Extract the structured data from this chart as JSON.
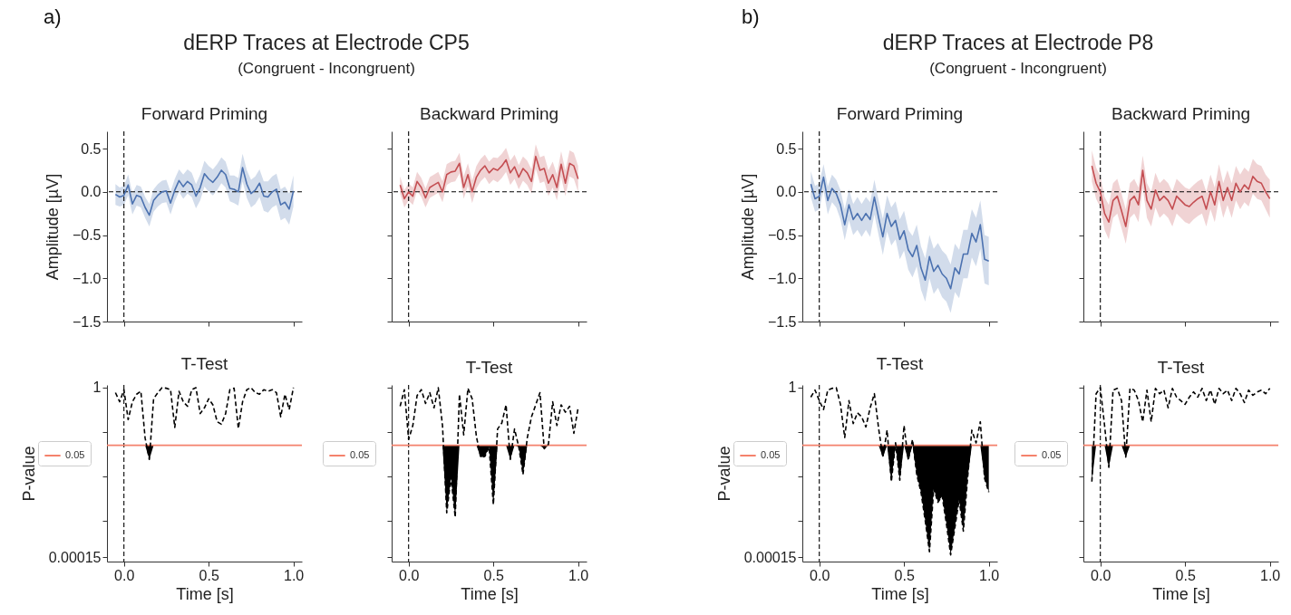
{
  "chart_data": [
    {
      "type": "line",
      "title": "Forward Priming",
      "ylabel": "Amplitude [µV]",
      "annotations": [
        "a)",
        "dERP Traces at Electrode CP5",
        "(Congruent - Incongruent)"
      ],
      "tick_labels": "y",
      "xlim": [
        -0.1,
        1.05
      ],
      "xticks": [
        {
          "value": 0,
          "label": null
        },
        {
          "value": 0.5,
          "label": null
        },
        {
          "value": 1,
          "label": null
        }
      ],
      "ylim": [
        -1.5,
        0.7
      ],
      "yticks": [
        {
          "value": -1.5,
          "label": "−1.5"
        },
        {
          "value": -1,
          "label": "−1.0"
        },
        {
          "value": -0.5,
          "label": "−0.5"
        },
        {
          "value": 0,
          "label": "0.0"
        },
        {
          "value": 0.5,
          "label": "0.5"
        }
      ],
      "grid": false,
      "ref_lines": [
        {
          "axis": "x",
          "value": 0,
          "color": "#000000",
          "line_style": "dashed"
        },
        {
          "axis": "y",
          "value": 0,
          "color": "#000000",
          "line_style": "dashed"
        }
      ],
      "x": [
        -0.05,
        -0.025,
        0,
        0.025,
        0.05,
        0.075,
        0.1,
        0.125,
        0.15,
        0.175,
        0.2,
        0.225,
        0.25,
        0.275,
        0.3,
        0.325,
        0.35,
        0.375,
        0.4,
        0.425,
        0.45,
        0.475,
        0.5,
        0.525,
        0.55,
        0.575,
        0.6,
        0.625,
        0.65,
        0.675,
        0.7,
        0.725,
        0.75,
        0.775,
        0.8,
        0.825,
        0.85,
        0.875,
        0.9,
        0.925,
        0.95,
        0.975,
        1.0
      ],
      "series": [
        {
          "color": "#4c72b0",
          "values": [
            -0.03,
            -0.06,
            -0.04,
            0.08,
            -0.14,
            -0.04,
            -0.06,
            -0.18,
            -0.27,
            -0.1,
            -0.04,
            0.0,
            0.01,
            -0.13,
            0.02,
            0.13,
            0.06,
            0.12,
            0.08,
            -0.05,
            0.05,
            0.21,
            0.15,
            0.11,
            0.17,
            0.25,
            0.2,
            0.04,
            0.03,
            0.0,
            0.28,
            0.09,
            -0.02,
            0.02,
            0.1,
            -0.05,
            -0.06,
            0.0,
            0.03,
            -0.15,
            -0.12,
            -0.2,
            0.01
          ],
          "lower": [
            -0.15,
            -0.17,
            -0.15,
            -0.04,
            -0.26,
            -0.16,
            -0.18,
            -0.3,
            -0.4,
            -0.23,
            -0.17,
            -0.13,
            -0.12,
            -0.26,
            -0.11,
            0.0,
            -0.08,
            -0.02,
            -0.06,
            -0.19,
            -0.1,
            0.06,
            0.0,
            -0.04,
            0.02,
            0.1,
            0.05,
            -0.11,
            -0.13,
            -0.16,
            0.12,
            -0.07,
            -0.18,
            -0.14,
            -0.06,
            -0.22,
            -0.24,
            -0.18,
            -0.15,
            -0.33,
            -0.3,
            -0.38,
            -0.17
          ],
          "upper": [
            0.09,
            0.05,
            0.07,
            0.2,
            -0.02,
            0.08,
            0.06,
            -0.06,
            -0.14,
            0.03,
            0.09,
            0.13,
            0.14,
            0.0,
            0.15,
            0.26,
            0.2,
            0.26,
            0.22,
            0.09,
            0.2,
            0.36,
            0.3,
            0.26,
            0.32,
            0.4,
            0.35,
            0.19,
            0.19,
            0.16,
            0.44,
            0.25,
            0.14,
            0.18,
            0.26,
            0.12,
            0.12,
            0.18,
            0.21,
            0.03,
            0.06,
            -0.02,
            0.19
          ]
        }
      ]
    },
    {
      "type": "line",
      "title": "Backward Priming",
      "tick_labels": false,
      "xlim": [
        -0.1,
        1.05
      ],
      "xticks": [
        {
          "value": 0,
          "label": null
        },
        {
          "value": 0.5,
          "label": null
        },
        {
          "value": 1,
          "label": null
        }
      ],
      "ylim": [
        -1.5,
        0.7
      ],
      "yticks": [
        {
          "value": -1.5,
          "label": null
        },
        {
          "value": -1,
          "label": null
        },
        {
          "value": -0.5,
          "label": null
        },
        {
          "value": 0,
          "label": null
        },
        {
          "value": 0.5,
          "label": null
        }
      ],
      "grid": false,
      "ref_lines": [
        {
          "axis": "x",
          "value": 0,
          "color": "#000000",
          "line_style": "dashed"
        },
        {
          "axis": "y",
          "value": 0,
          "color": "#000000",
          "line_style": "dashed"
        }
      ],
      "x": [
        -0.05,
        -0.025,
        0,
        0.025,
        0.05,
        0.075,
        0.1,
        0.125,
        0.15,
        0.175,
        0.2,
        0.225,
        0.25,
        0.275,
        0.3,
        0.325,
        0.35,
        0.375,
        0.4,
        0.425,
        0.45,
        0.475,
        0.5,
        0.525,
        0.55,
        0.575,
        0.6,
        0.625,
        0.65,
        0.675,
        0.7,
        0.725,
        0.75,
        0.775,
        0.8,
        0.825,
        0.85,
        0.875,
        0.9,
        0.925,
        0.95,
        0.975,
        1.0
      ],
      "series": [
        {
          "color": "#c44e52",
          "values": [
            0.08,
            -0.08,
            0.0,
            -0.05,
            0.12,
            0.05,
            -0.07,
            0.05,
            0.08,
            0.11,
            0.0,
            0.2,
            0.23,
            0.24,
            0.33,
            0.05,
            0.2,
            0.0,
            0.17,
            0.25,
            0.3,
            0.22,
            0.27,
            0.25,
            0.3,
            0.37,
            0.22,
            0.29,
            0.17,
            0.27,
            0.22,
            0.12,
            0.41,
            0.25,
            0.27,
            0.1,
            0.2,
            0.05,
            0.32,
            0.1,
            0.33,
            0.3,
            0.15
          ],
          "lower": [
            -0.02,
            -0.18,
            -0.1,
            -0.15,
            0.01,
            -0.06,
            -0.18,
            -0.07,
            -0.04,
            -0.01,
            -0.12,
            0.08,
            0.11,
            0.12,
            0.21,
            -0.08,
            0.07,
            -0.13,
            0.04,
            0.12,
            0.17,
            0.09,
            0.14,
            0.11,
            0.16,
            0.23,
            0.08,
            0.15,
            0.03,
            0.13,
            0.08,
            -0.02,
            0.27,
            0.1,
            0.12,
            -0.05,
            0.05,
            -0.1,
            0.17,
            -0.05,
            0.18,
            0.15,
            0.0
          ],
          "upper": [
            0.18,
            0.02,
            0.1,
            0.05,
            0.23,
            0.16,
            0.04,
            0.17,
            0.2,
            0.23,
            0.12,
            0.32,
            0.35,
            0.36,
            0.45,
            0.18,
            0.33,
            0.13,
            0.3,
            0.38,
            0.43,
            0.35,
            0.4,
            0.39,
            0.44,
            0.51,
            0.36,
            0.43,
            0.31,
            0.41,
            0.36,
            0.26,
            0.55,
            0.4,
            0.42,
            0.25,
            0.35,
            0.2,
            0.47,
            0.25,
            0.48,
            0.45,
            0.3
          ]
        }
      ]
    },
    {
      "type": "line",
      "title": "T-Test",
      "xlabel": "Time [s]",
      "ylabel": "P-value",
      "log": "y",
      "legend": "left",
      "marker": "none",
      "xlim": [
        -0.1,
        1.05
      ],
      "xticks": [
        {
          "value": 0,
          "label": "0.0"
        },
        {
          "value": 0.5,
          "label": "0.5"
        },
        {
          "value": 1,
          "label": "1.0"
        }
      ],
      "ylim": [
        0.00012,
        1.15
      ],
      "yticks": [
        {
          "value": 0.00015,
          "label": "0.00015"
        },
        {
          "value": 0.001,
          "label": null
        },
        {
          "value": 0.01,
          "label": null
        },
        {
          "value": 0.1,
          "label": null
        },
        {
          "value": 1,
          "label": "1"
        }
      ],
      "grid": false,
      "ref_lines": [
        {
          "axis": "x",
          "value": 0,
          "color": "#000000",
          "line_style": "dashed"
        },
        {
          "axis": "y",
          "value": 0.05,
          "label": "0.05",
          "color": "#f4826c",
          "line_style": "solid"
        }
      ],
      "x": [
        -0.05,
        -0.025,
        0,
        0.025,
        0.05,
        0.075,
        0.1,
        0.125,
        0.15,
        0.175,
        0.2,
        0.225,
        0.25,
        0.275,
        0.3,
        0.325,
        0.35,
        0.375,
        0.4,
        0.425,
        0.45,
        0.475,
        0.5,
        0.525,
        0.55,
        0.575,
        0.6,
        0.625,
        0.65,
        0.675,
        0.7,
        0.725,
        0.75,
        0.775,
        0.8,
        0.825,
        0.85,
        0.875,
        0.9,
        0.925,
        0.95,
        0.975,
        1.0
      ],
      "series": [
        {
          "color": "#000000",
          "line_style": "dashed",
          "lower": [
            0.05,
            0.05,
            0.05,
            0.05,
            0.05,
            0.05,
            0.05,
            0.05,
            0.024,
            0.05,
            0.05,
            0.05,
            0.05,
            0.05,
            0.05,
            0.05,
            0.05,
            0.05,
            0.05,
            0.05,
            0.05,
            0.05,
            0.05,
            0.05,
            0.05,
            0.05,
            0.05,
            0.05,
            0.05,
            0.05,
            0.05,
            0.05,
            0.05,
            0.05,
            0.05,
            0.05,
            0.05,
            0.05,
            0.05,
            0.05,
            0.05,
            0.05,
            0.05
          ],
          "upper": [
            0.05,
            0.05,
            0.05,
            0.05,
            0.05,
            0.05,
            0.05,
            0.05,
            0.05,
            0.05,
            0.05,
            0.05,
            0.05,
            0.05,
            0.05,
            0.05,
            0.05,
            0.05,
            0.05,
            0.05,
            0.05,
            0.05,
            0.05,
            0.05,
            0.05,
            0.05,
            0.05,
            0.05,
            0.05,
            0.05,
            0.05,
            0.05,
            0.05,
            0.05,
            0.05,
            0.05,
            0.05,
            0.05,
            0.05,
            0.05,
            0.05,
            0.05,
            0.05
          ],
          "values": [
            0.77,
            0.48,
            0.9,
            0.19,
            0.48,
            0.71,
            0.83,
            0.073,
            0.024,
            0.56,
            0.77,
            1.0,
            0.97,
            0.9,
            0.127,
            0.83,
            0.48,
            0.38,
            0.9,
            1.0,
            0.26,
            0.35,
            0.56,
            0.41,
            0.17,
            0.15,
            0.26,
            0.9,
            0.97,
            0.12,
            0.48,
            0.9,
            1.0,
            0.77,
            0.71,
            0.9,
            0.83,
            0.9,
            0.77,
            0.22,
            0.71,
            0.32,
            1.0
          ]
        }
      ]
    },
    {
      "type": "line",
      "title": "T-Test",
      "xlabel": "Time [s]",
      "log": "y",
      "legend": "left",
      "marker": "none",
      "tick_labels": "x",
      "xlim": [
        -0.1,
        1.05
      ],
      "xticks": [
        {
          "value": 0,
          "label": "0.0"
        },
        {
          "value": 0.5,
          "label": "0.5"
        },
        {
          "value": 1,
          "label": "1.0"
        }
      ],
      "ylim": [
        0.00012,
        1.15
      ],
      "yticks": [
        {
          "value": 0.00015,
          "label": null
        },
        {
          "value": 0.001,
          "label": null
        },
        {
          "value": 0.01,
          "label": null
        },
        {
          "value": 0.1,
          "label": null
        },
        {
          "value": 1,
          "label": null
        }
      ],
      "grid": false,
      "ref_lines": [
        {
          "axis": "x",
          "value": 0,
          "color": "#000000",
          "line_style": "dashed"
        },
        {
          "axis": "y",
          "value": 0.05,
          "label": "0.05",
          "color": "#f4826c",
          "line_style": "solid"
        }
      ],
      "x": [
        -0.05,
        -0.025,
        0,
        0.025,
        0.05,
        0.075,
        0.1,
        0.125,
        0.15,
        0.175,
        0.2,
        0.225,
        0.25,
        0.275,
        0.3,
        0.325,
        0.35,
        0.375,
        0.4,
        0.425,
        0.45,
        0.475,
        0.5,
        0.525,
        0.55,
        0.575,
        0.6,
        0.625,
        0.65,
        0.675,
        0.7,
        0.725,
        0.75,
        0.775,
        0.8,
        0.825,
        0.85,
        0.875,
        0.9,
        0.925,
        0.95,
        0.975,
        1.0
      ],
      "series": [
        {
          "color": "#000000",
          "line_style": "dashed",
          "lower": [
            0.05,
            0.05,
            0.05,
            0.05,
            0.05,
            0.05,
            0.05,
            0.05,
            0.05,
            0.05,
            0.05,
            0.0015,
            0.0095,
            0.0012,
            0.05,
            0.05,
            0.05,
            0.05,
            0.05,
            0.027,
            0.028,
            0.046,
            0.0023,
            0.05,
            0.05,
            0.05,
            0.024,
            0.05,
            0.046,
            0.011,
            0.05,
            0.05,
            0.05,
            0.05,
            0.042,
            0.05,
            0.05,
            0.05,
            0.05,
            0.05,
            0.05,
            0.05,
            0.05
          ],
          "upper": [
            0.05,
            0.05,
            0.05,
            0.05,
            0.05,
            0.05,
            0.05,
            0.05,
            0.05,
            0.05,
            0.05,
            0.05,
            0.05,
            0.05,
            0.05,
            0.05,
            0.05,
            0.05,
            0.05,
            0.05,
            0.05,
            0.05,
            0.05,
            0.05,
            0.05,
            0.05,
            0.05,
            0.05,
            0.05,
            0.05,
            0.05,
            0.05,
            0.05,
            0.05,
            0.05,
            0.05,
            0.05,
            0.05,
            0.05,
            0.05,
            0.05,
            0.05,
            0.05
          ],
          "values": [
            0.38,
            0.9,
            0.068,
            0.14,
            0.66,
            0.9,
            0.44,
            0.77,
            0.35,
            1.0,
            0.14,
            0.0015,
            0.0095,
            0.0012,
            0.71,
            0.086,
            0.97,
            0.56,
            0.079,
            0.027,
            0.028,
            0.046,
            0.0023,
            0.117,
            0.16,
            0.41,
            0.024,
            0.117,
            0.046,
            0.011,
            0.073,
            0.22,
            0.41,
            0.77,
            0.042,
            0.053,
            0.48,
            0.14,
            0.41,
            0.28,
            0.38,
            0.093,
            0.35
          ]
        }
      ]
    },
    {
      "type": "line",
      "title": "Forward Priming",
      "ylabel": "Amplitude [µV]",
      "annotations": [
        "b)",
        "dERP Traces at Electrode P8",
        "(Congruent - Incongruent)"
      ],
      "tick_labels": "y",
      "xlim": [
        -0.1,
        1.05
      ],
      "xticks": [
        {
          "value": 0,
          "label": null
        },
        {
          "value": 0.5,
          "label": null
        },
        {
          "value": 1,
          "label": null
        }
      ],
      "ylim": [
        -1.5,
        0.7
      ],
      "yticks": [
        {
          "value": -1.5,
          "label": "−1.5"
        },
        {
          "value": -1,
          "label": "−1.0"
        },
        {
          "value": -0.5,
          "label": "−0.5"
        },
        {
          "value": 0,
          "label": "0.0"
        },
        {
          "value": 0.5,
          "label": "0.5"
        }
      ],
      "grid": false,
      "ref_lines": [
        {
          "axis": "x",
          "value": 0,
          "color": "#000000",
          "line_style": "dashed"
        },
        {
          "axis": "y",
          "value": 0,
          "color": "#000000",
          "line_style": "dashed"
        }
      ],
      "x": [
        -0.05,
        -0.025,
        0,
        0.025,
        0.05,
        0.075,
        0.1,
        0.125,
        0.15,
        0.175,
        0.2,
        0.225,
        0.25,
        0.275,
        0.3,
        0.325,
        0.35,
        0.375,
        0.4,
        0.425,
        0.45,
        0.475,
        0.5,
        0.525,
        0.55,
        0.575,
        0.6,
        0.625,
        0.65,
        0.675,
        0.7,
        0.725,
        0.75,
        0.775,
        0.8,
        0.825,
        0.85,
        0.875,
        0.9,
        0.925,
        0.95,
        0.975,
        1.0
      ],
      "series": [
        {
          "color": "#4c72b0",
          "values": [
            0.09,
            -0.08,
            -0.05,
            0.17,
            -0.1,
            0.04,
            -0.02,
            -0.15,
            -0.38,
            -0.15,
            -0.32,
            -0.25,
            -0.33,
            -0.25,
            -0.32,
            -0.06,
            -0.3,
            -0.52,
            -0.25,
            -0.4,
            -0.33,
            -0.55,
            -0.45,
            -0.67,
            -0.75,
            -0.62,
            -0.88,
            -1.02,
            -0.75,
            -0.92,
            -0.85,
            -0.95,
            -1.0,
            -1.12,
            -0.88,
            -0.95,
            -0.72,
            -0.72,
            -0.48,
            -0.58,
            -0.38,
            -0.78,
            -0.8
          ],
          "lower": [
            -0.06,
            -0.23,
            -0.2,
            0.02,
            -0.26,
            -0.12,
            -0.18,
            -0.32,
            -0.56,
            -0.33,
            -0.5,
            -0.44,
            -0.52,
            -0.44,
            -0.52,
            -0.26,
            -0.5,
            -0.73,
            -0.46,
            -0.62,
            -0.55,
            -0.78,
            -0.68,
            -0.9,
            -0.99,
            -0.86,
            -1.13,
            -1.27,
            -1.0,
            -1.18,
            -1.11,
            -1.22,
            -1.27,
            -1.4,
            -1.16,
            -1.23,
            -1.0,
            -1.0,
            -0.76,
            -0.86,
            -0.66,
            -1.06,
            -1.08
          ],
          "upper": [
            0.24,
            0.07,
            0.1,
            0.32,
            0.06,
            0.2,
            0.14,
            0.02,
            -0.2,
            0.03,
            -0.14,
            -0.06,
            -0.14,
            -0.06,
            -0.12,
            0.14,
            -0.1,
            -0.31,
            -0.04,
            -0.18,
            -0.11,
            -0.32,
            -0.22,
            -0.44,
            -0.51,
            -0.38,
            -0.63,
            -0.77,
            -0.5,
            -0.66,
            -0.59,
            -0.68,
            -0.73,
            -0.84,
            -0.6,
            -0.67,
            -0.44,
            -0.44,
            -0.2,
            -0.3,
            -0.1,
            -0.5,
            -0.52
          ]
        }
      ]
    },
    {
      "type": "line",
      "title": "Backward Priming",
      "tick_labels": false,
      "xlim": [
        -0.1,
        1.05
      ],
      "xticks": [
        {
          "value": 0,
          "label": null
        },
        {
          "value": 0.5,
          "label": null
        },
        {
          "value": 1,
          "label": null
        }
      ],
      "ylim": [
        -1.5,
        0.7
      ],
      "yticks": [
        {
          "value": -1.5,
          "label": null
        },
        {
          "value": -1,
          "label": null
        },
        {
          "value": -0.5,
          "label": null
        },
        {
          "value": 0,
          "label": null
        },
        {
          "value": 0.5,
          "label": null
        }
      ],
      "grid": false,
      "ref_lines": [
        {
          "axis": "x",
          "value": 0,
          "color": "#000000",
          "line_style": "dashed"
        },
        {
          "axis": "y",
          "value": 0,
          "color": "#000000",
          "line_style": "dashed"
        }
      ],
      "x": [
        -0.05,
        -0.025,
        0,
        0.025,
        0.05,
        0.075,
        0.1,
        0.125,
        0.15,
        0.175,
        0.2,
        0.225,
        0.25,
        0.275,
        0.3,
        0.325,
        0.35,
        0.375,
        0.4,
        0.425,
        0.45,
        0.475,
        0.5,
        0.525,
        0.55,
        0.575,
        0.6,
        0.625,
        0.65,
        0.675,
        0.7,
        0.725,
        0.75,
        0.775,
        0.8,
        0.825,
        0.85,
        0.875,
        0.9,
        0.925,
        0.95,
        0.975,
        1.0
      ],
      "series": [
        {
          "color": "#c44e52",
          "values": [
            0.3,
            0.1,
            0.0,
            -0.25,
            -0.35,
            -0.1,
            -0.05,
            -0.22,
            -0.4,
            -0.1,
            -0.05,
            -0.15,
            0.25,
            -0.1,
            -0.2,
            0.02,
            -0.1,
            -0.05,
            -0.1,
            -0.2,
            -0.05,
            -0.1,
            -0.15,
            -0.17,
            -0.12,
            -0.08,
            -0.05,
            -0.2,
            0.0,
            -0.15,
            0.12,
            -0.1,
            0.05,
            -0.1,
            0.1,
            0.0,
            0.08,
            0.03,
            0.18,
            0.12,
            0.1,
            0.0,
            -0.08
          ],
          "lower": [
            0.12,
            -0.08,
            -0.18,
            -0.44,
            -0.55,
            -0.3,
            -0.25,
            -0.42,
            -0.6,
            -0.3,
            -0.25,
            -0.35,
            0.05,
            -0.3,
            -0.4,
            -0.18,
            -0.3,
            -0.25,
            -0.3,
            -0.4,
            -0.25,
            -0.3,
            -0.35,
            -0.37,
            -0.32,
            -0.28,
            -0.25,
            -0.4,
            -0.2,
            -0.35,
            -0.08,
            -0.3,
            -0.15,
            -0.3,
            -0.1,
            -0.2,
            -0.12,
            -0.17,
            -0.02,
            -0.08,
            -0.1,
            -0.2,
            -0.3
          ],
          "upper": [
            0.48,
            0.28,
            0.18,
            -0.06,
            -0.15,
            0.1,
            0.15,
            -0.02,
            -0.2,
            0.1,
            0.15,
            0.05,
            0.42,
            0.1,
            0.0,
            0.22,
            0.1,
            0.15,
            0.1,
            0.0,
            0.15,
            0.1,
            0.05,
            0.03,
            0.08,
            0.12,
            0.15,
            0.0,
            0.2,
            0.05,
            0.32,
            0.1,
            0.25,
            0.1,
            0.3,
            0.2,
            0.28,
            0.23,
            0.38,
            0.32,
            0.3,
            0.2,
            0.14
          ]
        }
      ]
    },
    {
      "type": "line",
      "title": "T-Test",
      "xlabel": "Time [s]",
      "ylabel": "P-value",
      "log": "y",
      "legend": "left",
      "marker": "none",
      "xlim": [
        -0.1,
        1.05
      ],
      "xticks": [
        {
          "value": 0,
          "label": "0.0"
        },
        {
          "value": 0.5,
          "label": "0.5"
        },
        {
          "value": 1,
          "label": "1.0"
        }
      ],
      "ylim": [
        0.00012,
        1.15
      ],
      "yticks": [
        {
          "value": 0.00015,
          "label": "0.00015"
        },
        {
          "value": 0.001,
          "label": null
        },
        {
          "value": 0.01,
          "label": null
        },
        {
          "value": 0.1,
          "label": null
        },
        {
          "value": 1,
          "label": "1"
        }
      ],
      "grid": false,
      "ref_lines": [
        {
          "axis": "x",
          "value": 0,
          "color": "#000000",
          "line_style": "dashed"
        },
        {
          "axis": "y",
          "value": 0.05,
          "label": "0.05",
          "color": "#f4826c",
          "line_style": "solid"
        }
      ],
      "x": [
        -0.05,
        -0.025,
        0,
        0.025,
        0.05,
        0.075,
        0.1,
        0.125,
        0.15,
        0.175,
        0.2,
        0.225,
        0.25,
        0.275,
        0.3,
        0.325,
        0.35,
        0.375,
        0.4,
        0.425,
        0.45,
        0.475,
        0.5,
        0.525,
        0.55,
        0.575,
        0.6,
        0.625,
        0.65,
        0.675,
        0.7,
        0.725,
        0.75,
        0.775,
        0.8,
        0.825,
        0.85,
        0.875,
        0.9,
        0.925,
        0.95,
        0.975,
        1.0
      ],
      "series": [
        {
          "color": "#000000",
          "line_style": "dashed",
          "lower": [
            0.05,
            0.05,
            0.05,
            0.05,
            0.05,
            0.05,
            0.05,
            0.05,
            0.05,
            0.05,
            0.05,
            0.05,
            0.05,
            0.05,
            0.05,
            0.05,
            0.05,
            0.027,
            0.05,
            0.0076,
            0.05,
            0.0082,
            0.05,
            0.023,
            0.05,
            0.011,
            0.0044,
            0.001,
            0.0002,
            0.0053,
            0.0026,
            0.0036,
            0.00085,
            0.00017,
            0.0007,
            0.003,
            0.00058,
            0.0091,
            0.05,
            0.05,
            0.05,
            0.0091,
            0.0044
          ],
          "upper": [
            0.05,
            0.05,
            0.05,
            0.05,
            0.05,
            0.05,
            0.05,
            0.05,
            0.05,
            0.05,
            0.05,
            0.05,
            0.05,
            0.05,
            0.05,
            0.05,
            0.05,
            0.05,
            0.05,
            0.05,
            0.05,
            0.05,
            0.05,
            0.05,
            0.05,
            0.05,
            0.05,
            0.05,
            0.05,
            0.05,
            0.05,
            0.05,
            0.05,
            0.05,
            0.05,
            0.05,
            0.05,
            0.05,
            0.05,
            0.05,
            0.05,
            0.05,
            0.05
          ],
          "values": [
            0.61,
            0.88,
            0.51,
            0.32,
            0.88,
            0.96,
            1.0,
            0.42,
            0.075,
            0.51,
            0.155,
            0.27,
            0.22,
            0.13,
            0.35,
            0.73,
            0.12,
            0.027,
            0.11,
            0.0076,
            0.057,
            0.0082,
            0.14,
            0.023,
            0.068,
            0.011,
            0.0044,
            0.001,
            0.0002,
            0.0053,
            0.0026,
            0.0036,
            0.00085,
            0.00017,
            0.0007,
            0.003,
            0.00058,
            0.0091,
            0.11,
            0.057,
            0.17,
            0.0091,
            0.0044
          ]
        }
      ]
    },
    {
      "type": "line",
      "title": "T-Test",
      "xlabel": "Time [s]",
      "log": "y",
      "legend": "left",
      "marker": "none",
      "tick_labels": "x",
      "xlim": [
        -0.1,
        1.05
      ],
      "xticks": [
        {
          "value": 0,
          "label": "0.0"
        },
        {
          "value": 0.5,
          "label": "0.5"
        },
        {
          "value": 1,
          "label": "1.0"
        }
      ],
      "ylim": [
        0.00012,
        1.15
      ],
      "yticks": [
        {
          "value": 0.00015,
          "label": null
        },
        {
          "value": 0.001,
          "label": null
        },
        {
          "value": 0.01,
          "label": null
        },
        {
          "value": 0.1,
          "label": null
        },
        {
          "value": 1,
          "label": null
        }
      ],
      "grid": false,
      "ref_lines": [
        {
          "axis": "x",
          "value": 0,
          "color": "#000000",
          "line_style": "dashed"
        },
        {
          "axis": "y",
          "value": 0.05,
          "label": "0.05",
          "color": "#f4826c",
          "line_style": "solid"
        }
      ],
      "x": [
        -0.05,
        -0.025,
        0,
        0.025,
        0.05,
        0.075,
        0.1,
        0.125,
        0.15,
        0.175,
        0.2,
        0.225,
        0.25,
        0.275,
        0.3,
        0.325,
        0.35,
        0.375,
        0.4,
        0.425,
        0.45,
        0.475,
        0.5,
        0.525,
        0.55,
        0.575,
        0.6,
        0.625,
        0.65,
        0.675,
        0.7,
        0.725,
        0.75,
        0.775,
        0.8,
        0.825,
        0.85,
        0.875,
        0.9,
        0.925,
        0.95,
        0.975,
        1.0
      ],
      "series": [
        {
          "color": "#000000",
          "line_style": "dashed",
          "lower": [
            0.0076,
            0.05,
            0.05,
            0.05,
            0.016,
            0.05,
            0.05,
            0.05,
            0.027,
            0.05,
            0.05,
            0.05,
            0.05,
            0.05,
            0.05,
            0.05,
            0.05,
            0.05,
            0.05,
            0.05,
            0.05,
            0.05,
            0.05,
            0.05,
            0.05,
            0.05,
            0.05,
            0.05,
            0.05,
            0.05,
            0.05,
            0.05,
            0.05,
            0.05,
            0.05,
            0.05,
            0.05,
            0.05,
            0.05,
            0.05,
            0.05,
            0.05,
            0.05
          ],
          "upper": [
            0.05,
            0.05,
            0.05,
            0.05,
            0.05,
            0.05,
            0.05,
            0.05,
            0.05,
            0.05,
            0.05,
            0.05,
            0.05,
            0.05,
            0.05,
            0.05,
            0.05,
            0.05,
            0.05,
            0.05,
            0.05,
            0.05,
            0.05,
            0.05,
            0.05,
            0.05,
            0.05,
            0.05,
            0.05,
            0.05,
            0.05,
            0.05,
            0.05,
            0.05,
            0.05,
            0.05,
            0.05,
            0.05,
            0.05,
            0.05,
            0.05,
            0.05,
            0.05
          ],
          "values": [
            0.0076,
            0.73,
            1.0,
            0.14,
            0.016,
            0.88,
            0.96,
            0.51,
            0.027,
            0.96,
            0.88,
            0.51,
            0.17,
            0.88,
            0.17,
            0.96,
            0.73,
            0.88,
            0.35,
            0.96,
            0.61,
            0.51,
            0.42,
            0.61,
            0.8,
            0.61,
            0.96,
            0.51,
            0.88,
            0.42,
            0.96,
            0.73,
            0.88,
            0.51,
            0.96,
            0.73,
            0.46,
            0.88,
            0.67,
            0.8,
            0.88,
            0.73,
            0.96
          ]
        }
      ]
    }
  ]
}
